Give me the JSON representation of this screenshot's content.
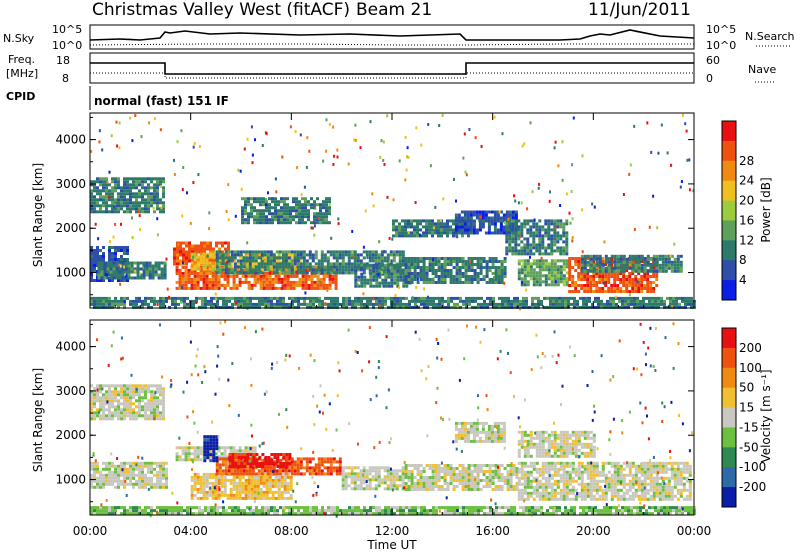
{
  "header": {
    "title": "Christmas Valley West (fitACF)",
    "beam": "Beam 21",
    "date": "11/Jun/2011"
  },
  "top_panels": {
    "nsky_label": "N.Sky",
    "nsky_ticks": [
      "10^5",
      "10^0"
    ],
    "nsearch_label": "N.Search",
    "nsearch_ticks": [
      "10^5",
      "10^0"
    ],
    "freq_label_1": "Freq.",
    "freq_label_2": "[MHz]",
    "freq_ticks": [
      "18",
      "8"
    ],
    "nave_label": "Nave",
    "nave_ticks": [
      "60",
      "0"
    ],
    "cpid_label": "CPID",
    "cpid_text": "normal (fast) 151 IF"
  },
  "chart_data": [
    {
      "type": "heatmap",
      "name": "power",
      "ylabel": "Slant Range [km]",
      "yticks": [
        "1000",
        "2000",
        "3000",
        "4000"
      ],
      "ylim": [
        200,
        4600
      ],
      "colorbar": {
        "label": "Power [dB]",
        "ticks": [
          "4",
          "8",
          "12",
          "16",
          "20",
          "24",
          "28"
        ],
        "colors": [
          "#0a1ee6",
          "#2e4fa8",
          "#2e7a6a",
          "#5ea05a",
          "#9ccc3c",
          "#f0c020",
          "#f08a10",
          "#f05010",
          "#e81010"
        ]
      },
      "regions": [
        {
          "t0": 0.0,
          "t1": 2.9,
          "r0": 2400,
          "r1": 3150,
          "level": 2
        },
        {
          "t0": 0.0,
          "t1": 1.5,
          "r0": 800,
          "r1": 1600,
          "level": 1
        },
        {
          "t0": 0.3,
          "t1": 3.0,
          "r0": 900,
          "r1": 1250,
          "level": 2
        },
        {
          "t0": 3.3,
          "t1": 5.5,
          "r0": 1200,
          "r1": 1700,
          "level": 7
        },
        {
          "t0": 3.4,
          "t1": 9.8,
          "r0": 650,
          "r1": 1150,
          "level": 7
        },
        {
          "t0": 4.0,
          "t1": 8.5,
          "r0": 1100,
          "r1": 1450,
          "level": 5
        },
        {
          "t0": 5.0,
          "t1": 12.5,
          "r0": 1000,
          "r1": 1500,
          "level": 2
        },
        {
          "t0": 6.0,
          "t1": 9.5,
          "r0": 2100,
          "r1": 2700,
          "level": 2
        },
        {
          "t0": 10.5,
          "t1": 12.7,
          "r0": 700,
          "r1": 1200,
          "level": 2
        },
        {
          "t0": 12.0,
          "t1": 15.0,
          "r0": 1800,
          "r1": 2200,
          "level": 2
        },
        {
          "t0": 12.5,
          "t1": 16.5,
          "r0": 750,
          "r1": 1350,
          "level": 2
        },
        {
          "t0": 14.5,
          "t1": 17.0,
          "r0": 1900,
          "r1": 2400,
          "level": 1
        },
        {
          "t0": 16.5,
          "t1": 19.0,
          "r0": 1400,
          "r1": 2200,
          "level": 2
        },
        {
          "t0": 17.0,
          "t1": 19.0,
          "r0": 700,
          "r1": 1300,
          "level": 3
        },
        {
          "t0": 19.0,
          "t1": 22.5,
          "r0": 550,
          "r1": 1350,
          "level": 7
        },
        {
          "t0": 19.5,
          "t1": 23.5,
          "r0": 1000,
          "r1": 1400,
          "level": 2
        },
        {
          "t0": 0.0,
          "t1": 24.0,
          "r0": 200,
          "r1": 450,
          "level": 2
        }
      ]
    },
    {
      "type": "heatmap",
      "name": "velocity",
      "xlabel": "Time UT",
      "ylabel": "Slant Range [km]",
      "xticks": [
        "00:00",
        "04:00",
        "08:00",
        "12:00",
        "16:00",
        "20:00",
        "00:00"
      ],
      "yticks": [
        "1000",
        "2000",
        "3000",
        "4000"
      ],
      "ylim": [
        200,
        4600
      ],
      "colorbar": {
        "label": "Velocity [m s⁻¹]",
        "ticks": [
          "200",
          "100",
          "50",
          "15",
          "-15",
          "-50",
          "-100",
          "-200"
        ],
        "colors": [
          "#0a1ea8",
          "#2e6aa8",
          "#2e8a50",
          "#6cc040",
          "#c8c8c0",
          "#f0c030",
          "#f08a10",
          "#f05010",
          "#e81010"
        ]
      },
      "regions": [
        {
          "t0": 0.0,
          "t1": 2.9,
          "r0": 2400,
          "r1": 3150,
          "level": 4
        },
        {
          "t0": 0.0,
          "t1": 3.0,
          "r0": 800,
          "r1": 1400,
          "level": 4
        },
        {
          "t0": 3.4,
          "t1": 6.5,
          "r0": 1450,
          "r1": 1750,
          "level": 4
        },
        {
          "t0": 4.0,
          "t1": 8.0,
          "r0": 600,
          "r1": 1150,
          "level": 5
        },
        {
          "t0": 5.0,
          "t1": 10.0,
          "r0": 1100,
          "r1": 1500,
          "level": 7
        },
        {
          "t0": 5.5,
          "t1": 8.0,
          "r0": 1300,
          "r1": 1600,
          "level": 8
        },
        {
          "t0": 4.5,
          "t1": 5.0,
          "r0": 1400,
          "r1": 2000,
          "level": 0
        },
        {
          "t0": 10.0,
          "t1": 12.5,
          "r0": 800,
          "r1": 1300,
          "level": 4
        },
        {
          "t0": 12.5,
          "t1": 17.0,
          "r0": 800,
          "r1": 1350,
          "level": 4
        },
        {
          "t0": 14.5,
          "t1": 16.5,
          "r0": 1850,
          "r1": 2300,
          "level": 4
        },
        {
          "t0": 17.0,
          "t1": 23.8,
          "r0": 550,
          "r1": 1400,
          "level": 4
        },
        {
          "t0": 17.0,
          "t1": 20.0,
          "r0": 1500,
          "r1": 2100,
          "level": 4
        },
        {
          "t0": 0.0,
          "t1": 24.0,
          "r0": 200,
          "r1": 400,
          "level": 3
        }
      ]
    }
  ]
}
